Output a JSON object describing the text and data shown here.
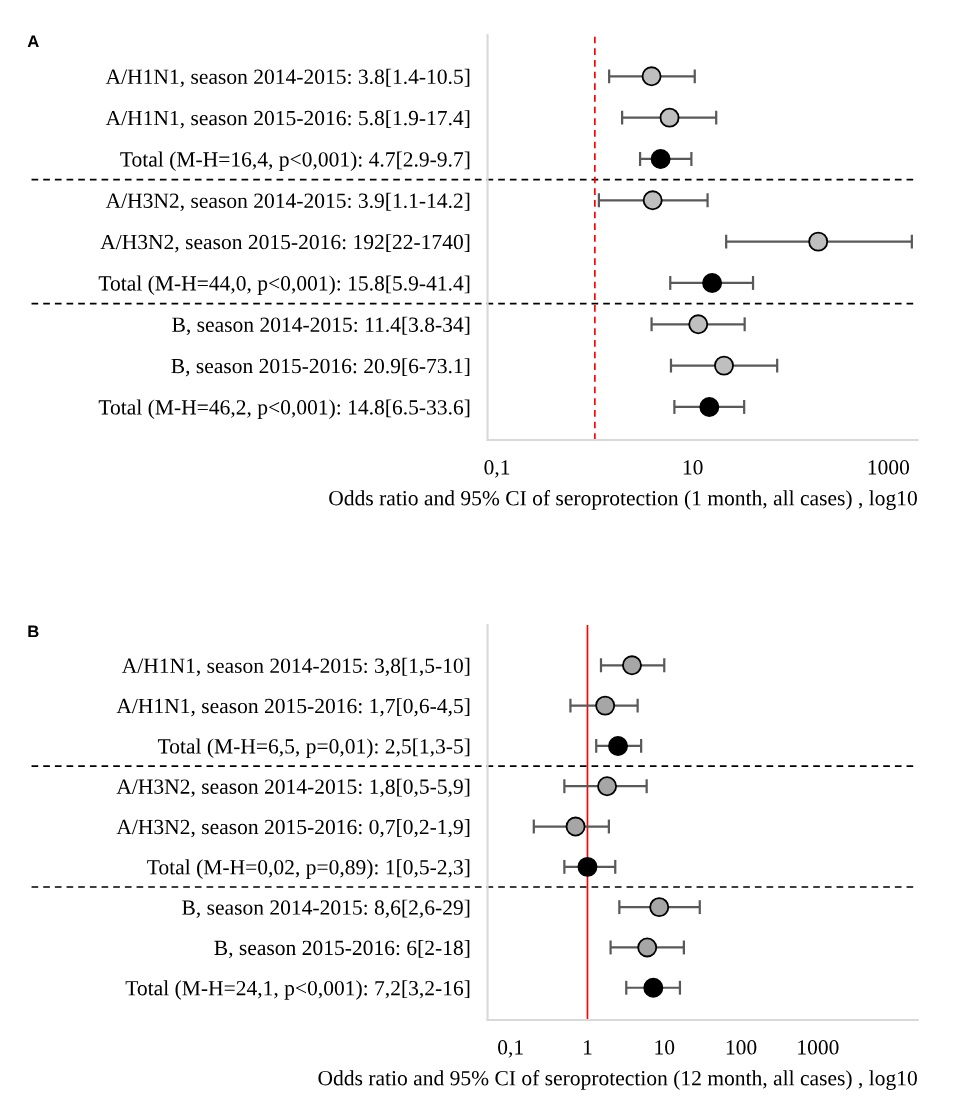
{
  "chart_data": [
    {
      "type": "scatter",
      "orientation": "horizontal",
      "title": "A",
      "xlabel": "Odds ratio and 95% CI of seroprotection (1 month, all cases) , log10",
      "log": "x",
      "marker": "circle",
      "grid": false,
      "categories": [
        "A/H1N1, season 2014-2015: 3.8[1.4-10.5]",
        "A/H1N1, season 2015-2016: 5.8[1.9-17.4]",
        "Total (M-H=16,4, p<0,001): 4.7[2.9-9.7]",
        "A/H3N2, season 2014-2015: 3.9[1.1-14.2]",
        "A/H3N2, season 2015-2016: 192[22-1740]",
        "Total (M-H=44,0, p<0,001): 15.8[5.9-41.4]",
        "B, season 2014-2015: 11.4[3.8-34]",
        "B, season 2015-2016: 20.9[6-73.1]",
        "Total (M-H=46,2, p<0,001): 14.8[6.5-33.6]"
      ],
      "series": [
        {
          "values": [
            3.8,
            5.8,
            4.7,
            3.9,
            192,
            15.8,
            11.4,
            20.9,
            14.8
          ],
          "colors": [
            "#bfbfbf",
            "#bfbfbf",
            "#000000",
            "#bfbfbf",
            "#bfbfbf",
            "#000000",
            "#bfbfbf",
            "#bfbfbf",
            "#000000"
          ],
          "errors": [
            [
              1.4,
              10.5
            ],
            [
              1.9,
              17.4
            ],
            [
              2.9,
              9.7
            ],
            [
              1.1,
              14.2
            ],
            [
              22,
              1740
            ],
            [
              5.9,
              41.4
            ],
            [
              3.8,
              34
            ],
            [
              6,
              73.1
            ],
            [
              6.5,
              33.6
            ]
          ]
        }
      ],
      "xlim": [
        0.08,
        2000
      ],
      "xticks": [
        {
          "value": 0.1,
          "label": "0,1"
        },
        10,
        1000
      ],
      "ref_lines": [
        {
          "axis": "x",
          "value": 1,
          "color": "#ff0000",
          "line_style": "dashed"
        }
      ]
    },
    {
      "type": "scatter",
      "orientation": "horizontal",
      "title": "B",
      "xlabel": "Odds ratio and 95% CI of seroprotection (12 month, all cases) , log10",
      "log": "x",
      "marker": "circle",
      "grid": false,
      "categories": [
        "A/H1N1, season 2014-2015: 3,8[1,5-10]",
        "A/H1N1, season 2015-2016: 1,7[0,6-4,5]",
        "Total (M-H=6,5, p=0,01): 2,5[1,3-5]",
        "A/H3N2, season 2014-2015: 1,8[0,5-5,9]",
        "A/H3N2, season 2015-2016: 0,7[0,2-1,9]",
        "Total (M-H=0,02, p=0,89): 1[0,5-2,3]",
        "B, season 2014-2015: 8,6[2,6-29]",
        "B, season 2015-2016: 6[2-18]",
        "Total (M-H=24,1, p<0,001): 7,2[3,2-16]"
      ],
      "series": [
        {
          "values": [
            3.8,
            1.7,
            2.5,
            1.8,
            0.7,
            1,
            8.6,
            6,
            7.2
          ],
          "colors": [
            "#a6a6a6",
            "#a6a6a6",
            "#000000",
            "#a6a6a6",
            "#a6a6a6",
            "#000000",
            "#a6a6a6",
            "#a6a6a6",
            "#000000"
          ],
          "errors": [
            [
              1.5,
              10
            ],
            [
              0.6,
              4.5
            ],
            [
              1.3,
              5
            ],
            [
              0.5,
              5.9
            ],
            [
              0.2,
              1.9
            ],
            [
              0.5,
              2.3
            ],
            [
              2.6,
              29
            ],
            [
              2,
              18
            ],
            [
              3.2,
              16
            ]
          ]
        }
      ],
      "xlim": [
        0.05,
        20000
      ],
      "xticks": [
        {
          "value": 0.1,
          "label": "0,1"
        },
        1,
        10,
        100,
        1000
      ],
      "ref_lines": [
        {
          "axis": "x",
          "value": 1,
          "color": "#ff0000",
          "line_style": "solid"
        }
      ]
    }
  ]
}
